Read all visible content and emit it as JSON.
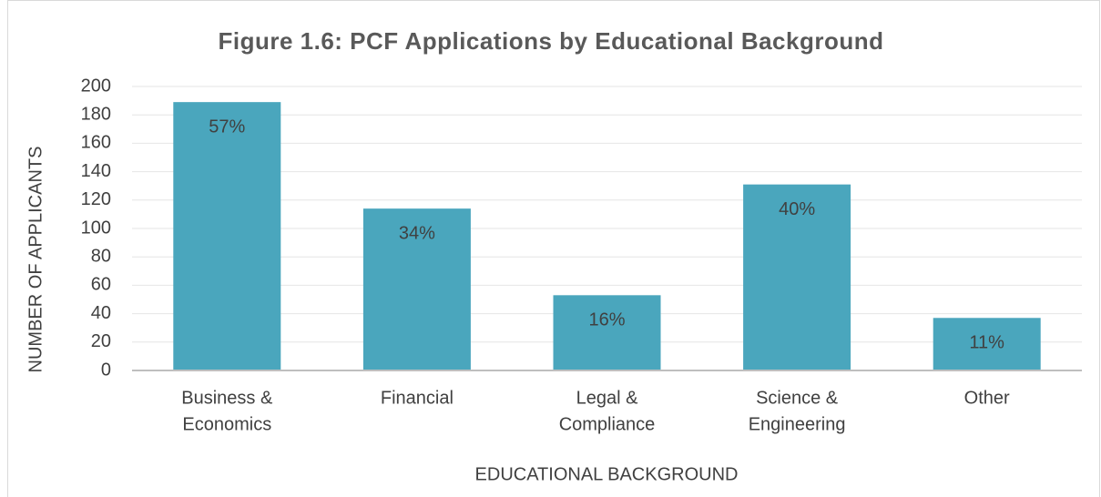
{
  "chart_data": {
    "type": "bar",
    "title": "Figure 1.6: PCF Applications by Educational Background",
    "x_label": "EDUCATIONAL BACKGROUND",
    "y_label": "NUMBER OF APPLICANTS",
    "categories": [
      [
        "Business &",
        "Economics"
      ],
      [
        "Financial"
      ],
      [
        "Legal &",
        "Compliance"
      ],
      [
        "Science &",
        "Engineering"
      ],
      [
        "Other"
      ]
    ],
    "values": [
      189,
      114,
      53,
      131,
      37
    ],
    "bar_labels": [
      "57%",
      "34%",
      "16%",
      "40%",
      "11%"
    ],
    "color": "#4aa6bd",
    "ylim": [
      0,
      200
    ],
    "yticks": [
      0,
      20,
      40,
      60,
      80,
      100,
      120,
      140,
      160,
      180,
      200
    ],
    "grid": true
  }
}
